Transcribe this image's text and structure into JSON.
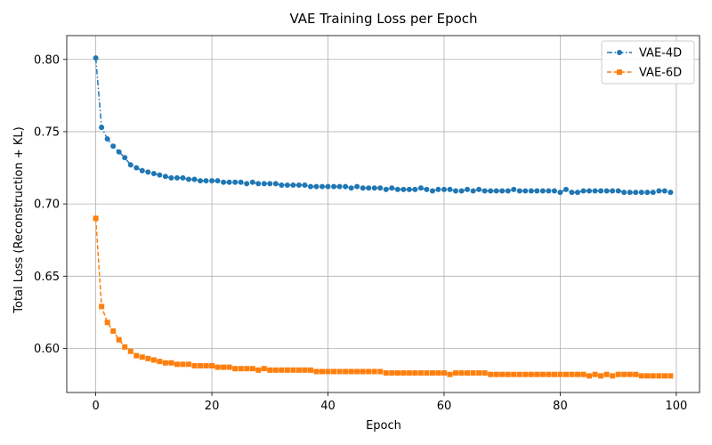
{
  "chart_data": {
    "type": "line",
    "title": "VAE Training Loss per Epoch",
    "xlabel": "Epoch",
    "ylabel": "Total Loss (Reconstruction + KL)",
    "xlim": [
      -5,
      104
    ],
    "ylim": [
      0.5695,
      0.8165
    ],
    "x_ticks": [
      0,
      20,
      40,
      60,
      80,
      100
    ],
    "y_ticks": [
      0.6,
      0.65,
      0.7,
      0.75,
      0.8
    ],
    "x_tick_labels": [
      "0",
      "20",
      "40",
      "60",
      "80",
      "100"
    ],
    "y_tick_labels": [
      "0.60",
      "0.65",
      "0.70",
      "0.75",
      "0.80"
    ],
    "grid": true,
    "legend_position": "top-right",
    "x": [
      0,
      1,
      2,
      3,
      4,
      5,
      6,
      7,
      8,
      9,
      10,
      11,
      12,
      13,
      14,
      15,
      16,
      17,
      18,
      19,
      20,
      21,
      22,
      23,
      24,
      25,
      26,
      27,
      28,
      29,
      30,
      31,
      32,
      33,
      34,
      35,
      36,
      37,
      38,
      39,
      40,
      41,
      42,
      43,
      44,
      45,
      46,
      47,
      48,
      49,
      50,
      51,
      52,
      53,
      54,
      55,
      56,
      57,
      58,
      59,
      60,
      61,
      62,
      63,
      64,
      65,
      66,
      67,
      68,
      69,
      70,
      71,
      72,
      73,
      74,
      75,
      76,
      77,
      78,
      79,
      80,
      81,
      82,
      83,
      84,
      85,
      86,
      87,
      88,
      89,
      90,
      91,
      92,
      93,
      94,
      95,
      96,
      97,
      98,
      99
    ],
    "series": [
      {
        "name": "VAE-4D",
        "color": "#1f77b4",
        "marker": "circle",
        "linestyle": "dashdot",
        "values": [
          0.801,
          0.753,
          0.745,
          0.74,
          0.736,
          0.732,
          0.727,
          0.725,
          0.723,
          0.722,
          0.721,
          0.72,
          0.719,
          0.718,
          0.718,
          0.718,
          0.717,
          0.717,
          0.716,
          0.716,
          0.716,
          0.716,
          0.715,
          0.715,
          0.715,
          0.715,
          0.714,
          0.715,
          0.714,
          0.714,
          0.714,
          0.714,
          0.713,
          0.713,
          0.713,
          0.713,
          0.713,
          0.712,
          0.712,
          0.712,
          0.712,
          0.712,
          0.712,
          0.712,
          0.711,
          0.712,
          0.711,
          0.711,
          0.711,
          0.711,
          0.71,
          0.711,
          0.71,
          0.71,
          0.71,
          0.71,
          0.711,
          0.71,
          0.709,
          0.71,
          0.71,
          0.71,
          0.709,
          0.709,
          0.71,
          0.709,
          0.71,
          0.709,
          0.709,
          0.709,
          0.709,
          0.709,
          0.71,
          0.709,
          0.709,
          0.709,
          0.709,
          0.709,
          0.709,
          0.709,
          0.708,
          0.71,
          0.708,
          0.708,
          0.709,
          0.709,
          0.709,
          0.709,
          0.709,
          0.709,
          0.709,
          0.708,
          0.708,
          0.708,
          0.708,
          0.708,
          0.708,
          0.709,
          0.709,
          0.708
        ]
      },
      {
        "name": "VAE-6D",
        "color": "#ff7f0e",
        "marker": "square",
        "linestyle": "dashed",
        "values": [
          0.69,
          0.629,
          0.618,
          0.612,
          0.606,
          0.601,
          0.598,
          0.595,
          0.594,
          0.593,
          0.592,
          0.591,
          0.59,
          0.59,
          0.589,
          0.589,
          0.589,
          0.588,
          0.588,
          0.588,
          0.588,
          0.587,
          0.587,
          0.587,
          0.586,
          0.586,
          0.586,
          0.586,
          0.585,
          0.586,
          0.585,
          0.585,
          0.585,
          0.585,
          0.585,
          0.585,
          0.585,
          0.585,
          0.584,
          0.584,
          0.584,
          0.584,
          0.584,
          0.584,
          0.584,
          0.584,
          0.584,
          0.584,
          0.584,
          0.584,
          0.583,
          0.583,
          0.583,
          0.583,
          0.583,
          0.583,
          0.583,
          0.583,
          0.583,
          0.583,
          0.583,
          0.582,
          0.583,
          0.583,
          0.583,
          0.583,
          0.583,
          0.583,
          0.582,
          0.582,
          0.582,
          0.582,
          0.582,
          0.582,
          0.582,
          0.582,
          0.582,
          0.582,
          0.582,
          0.582,
          0.582,
          0.582,
          0.582,
          0.582,
          0.582,
          0.581,
          0.582,
          0.581,
          0.582,
          0.581,
          0.582,
          0.582,
          0.582,
          0.582,
          0.581,
          0.581,
          0.581,
          0.581,
          0.581,
          0.581
        ]
      }
    ]
  }
}
